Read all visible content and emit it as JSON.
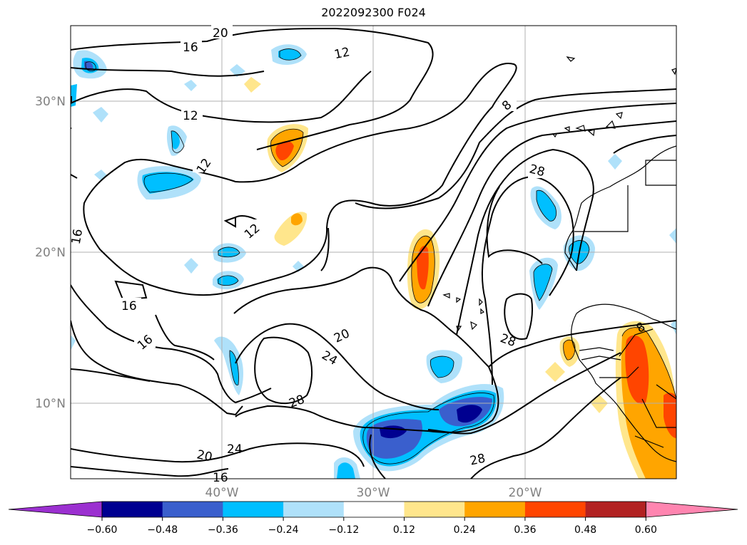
{
  "title": "2022092300 F024",
  "map": {
    "lat_labels": [
      "30°N",
      "20°N",
      "10°N"
    ],
    "lon_labels": [
      "40°W",
      "30°W",
      "20°W"
    ],
    "contour_labels": [
      "20",
      "16",
      "12",
      "12",
      "12",
      "12",
      "8",
      "28",
      "16",
      "16",
      "16",
      "20",
      "24",
      "28",
      "28",
      "20",
      "24",
      "16",
      "28",
      "8"
    ],
    "contour_color": "#000000",
    "grid": true
  },
  "colorbar": {
    "ticks": [
      "−0.60",
      "−0.48",
      "−0.36",
      "−0.24",
      "−0.12",
      "0.12",
      "0.24",
      "0.36",
      "0.48",
      "0.60"
    ],
    "colors": [
      "#9b30d0",
      "#000090",
      "#3a5fcd",
      "#00bfff",
      "#afe1fa",
      "#ffffff",
      "#ffe68c",
      "#ffa500",
      "#ff4500",
      "#b22222",
      "#ff85b0"
    ],
    "extend": "both"
  }
}
